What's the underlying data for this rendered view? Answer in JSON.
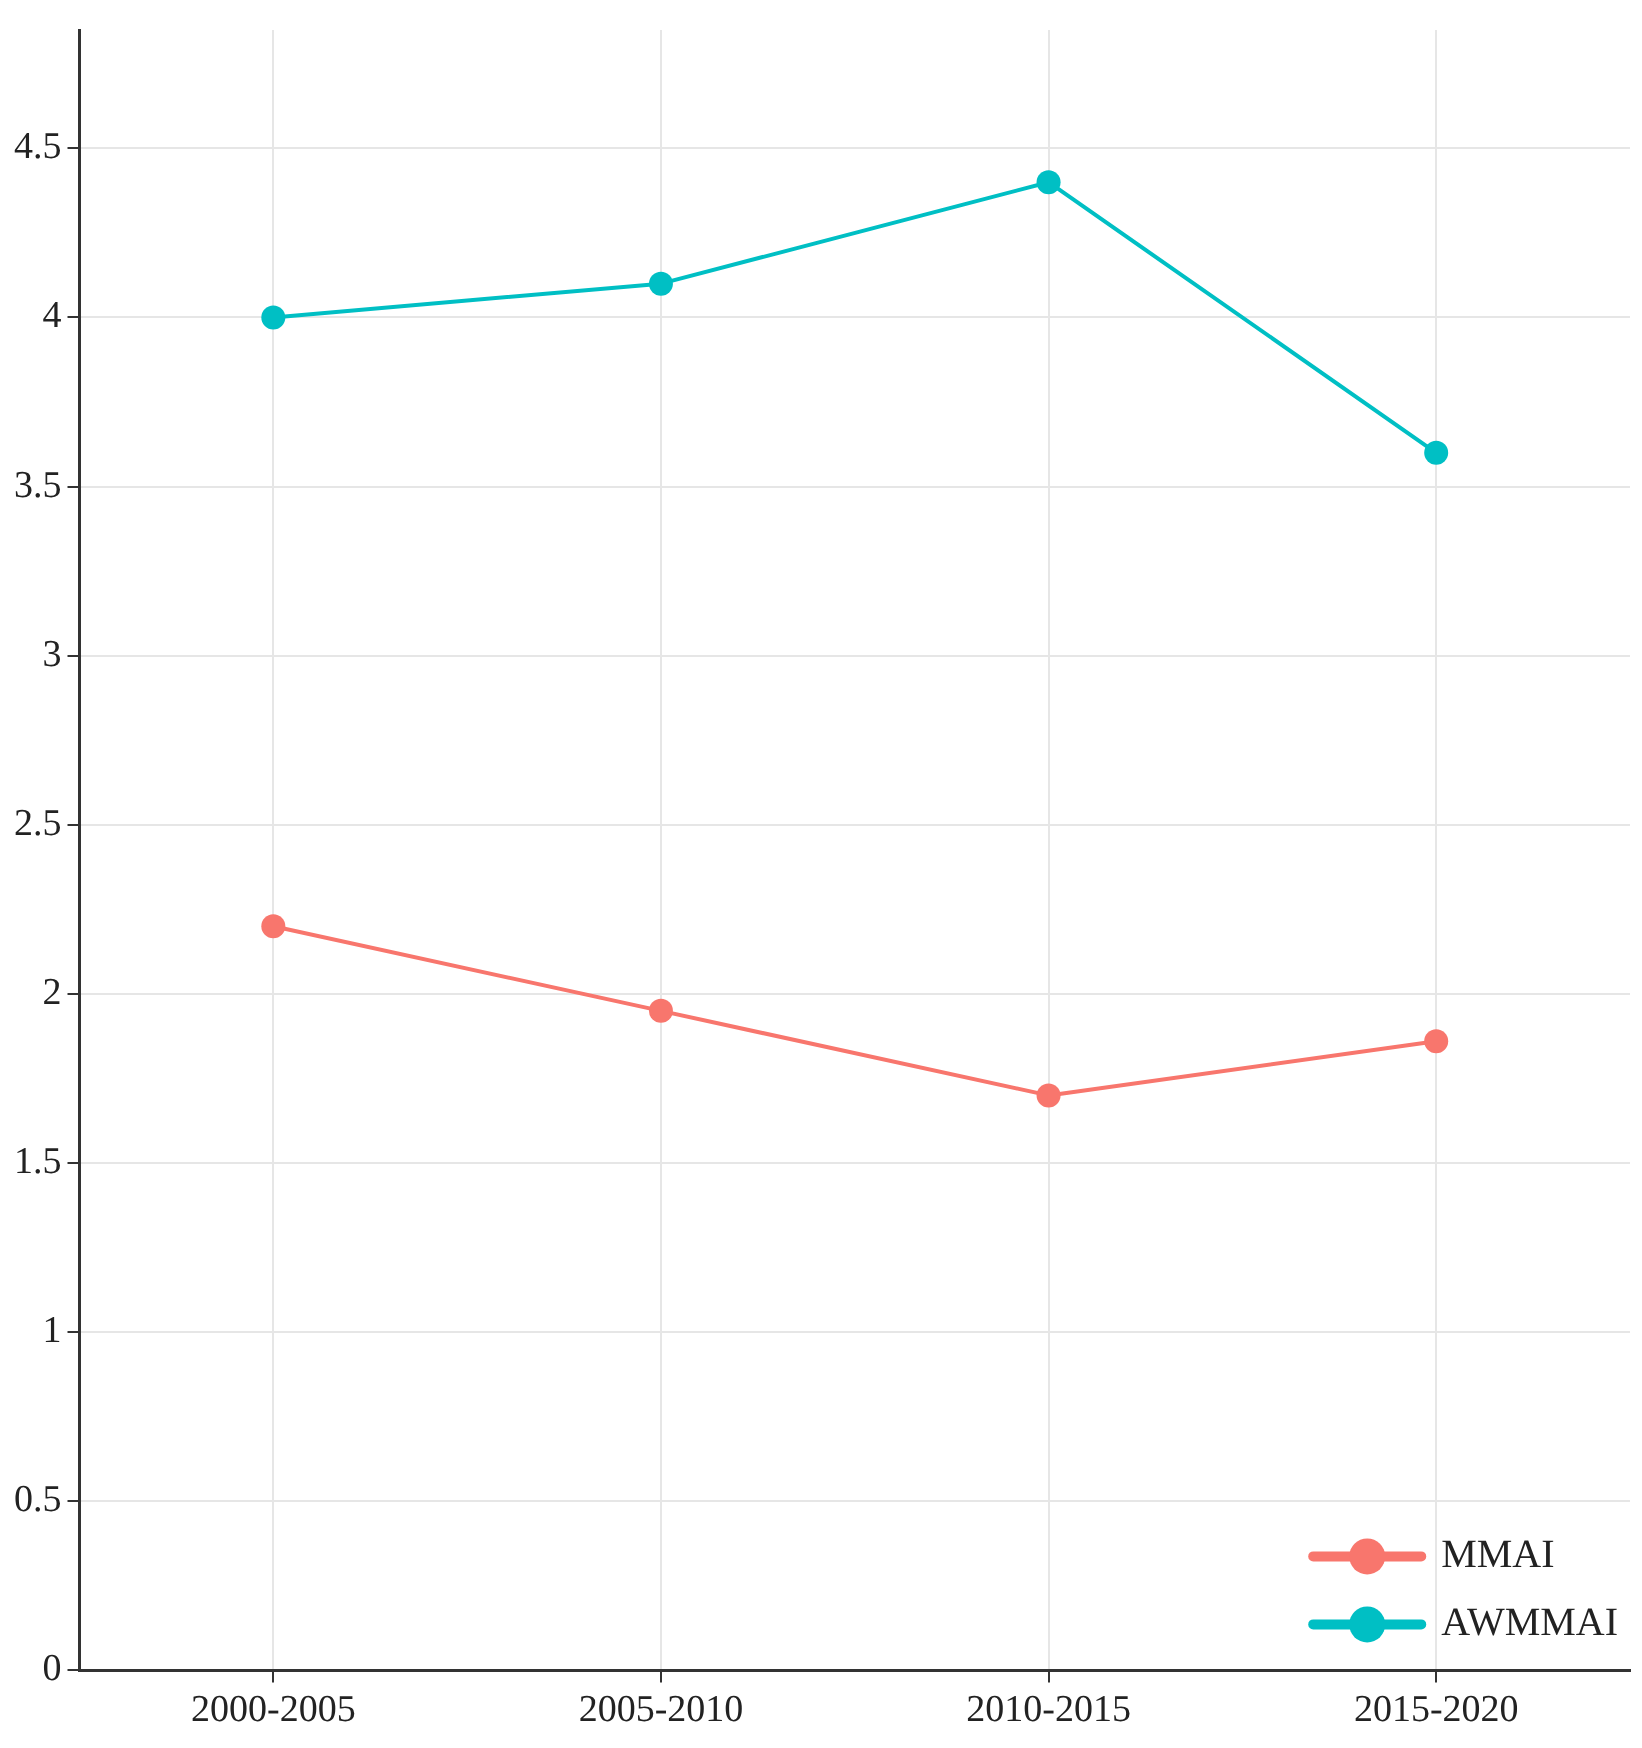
{
  "chart_data": {
    "type": "line",
    "categories": [
      "2000-2005",
      "2005-2010",
      "2010-2015",
      "2015-2020"
    ],
    "series": [
      {
        "name": "MMAI",
        "color": "#f8766d",
        "values": [
          2.2,
          1.95,
          1.7,
          1.86
        ]
      },
      {
        "name": "AWMMAI",
        "color": "#00bfc4",
        "values": [
          4.0,
          4.1,
          4.4,
          3.6
        ]
      }
    ],
    "ylim": [
      0,
      4.85
    ],
    "yticks": [
      0,
      0.5,
      1,
      1.5,
      2,
      2.5,
      3,
      3.5,
      4,
      4.5
    ],
    "grid": true,
    "legend": "bottom right",
    "marker": "circle",
    "line_style": "solid"
  }
}
